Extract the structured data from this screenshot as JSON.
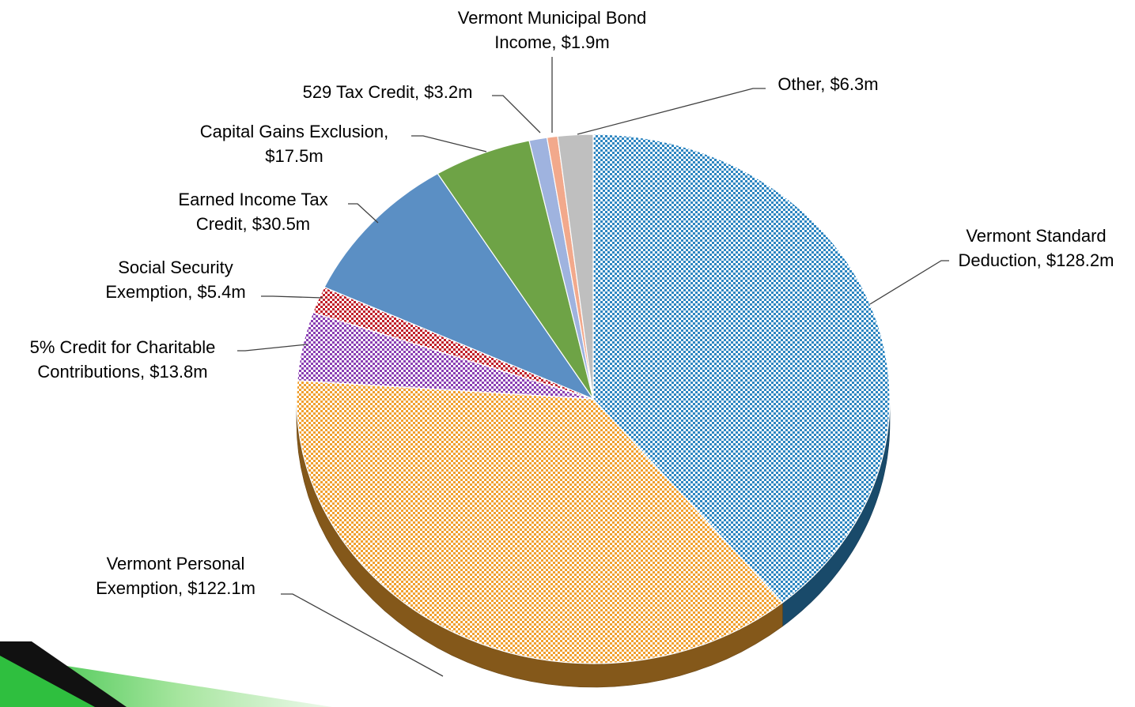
{
  "chart_data": {
    "type": "pie",
    "title": "",
    "unit": "$m",
    "slices": [
      {
        "name": "Vermont Standard Deduction",
        "label_lines": [
          "Vermont Standard",
          "Deduction, $128.2m"
        ],
        "value": 128.2,
        "color": "#2e86c1",
        "pattern": "checker"
      },
      {
        "name": "Vermont Personal Exemption",
        "label_lines": [
          "Vermont Personal",
          "Exemption, $122.1m"
        ],
        "value": 122.1,
        "color": "#f0a030",
        "pattern": "checker"
      },
      {
        "name": "5% Credit for Charitable Contributions",
        "label_lines": [
          "5% Credit for Charitable",
          "Contributions, $13.8m"
        ],
        "value": 13.8,
        "color": "#8a3fb3",
        "pattern": "checker"
      },
      {
        "name": "Social Security Exemption",
        "label_lines": [
          "Social Security",
          "Exemption, $5.4m"
        ],
        "value": 5.4,
        "color": "#c0202a",
        "pattern": "checker"
      },
      {
        "name": "Earned Income Tax Credit",
        "label_lines": [
          "Earned Income Tax",
          "Credit, $30.5m"
        ],
        "value": 30.5,
        "color": "#5b8fc4",
        "pattern": "solid"
      },
      {
        "name": "Capital Gains Exclusion",
        "label_lines": [
          "Capital Gains Exclusion,",
          "$17.5m"
        ],
        "value": 17.5,
        "color": "#6ea346",
        "pattern": "solid"
      },
      {
        "name": "529 Tax Credit",
        "label_lines": [
          "529 Tax Credit, $3.2m"
        ],
        "value": 3.2,
        "color": "#9fb3df",
        "pattern": "solid"
      },
      {
        "name": "Vermont Municipal Bond Income",
        "label_lines": [
          "Vermont Municipal Bond",
          "Income, $1.9m"
        ],
        "value": 1.9,
        "color": "#f2a98c",
        "pattern": "solid"
      },
      {
        "name": "Other",
        "label_lines": [
          "Other, $6.3m"
        ],
        "value": 6.3,
        "color": "#bfbfbf",
        "pattern": "solid"
      }
    ],
    "legend": "none",
    "decoration": {
      "corner_banner_color": "#2fbf3f"
    }
  }
}
